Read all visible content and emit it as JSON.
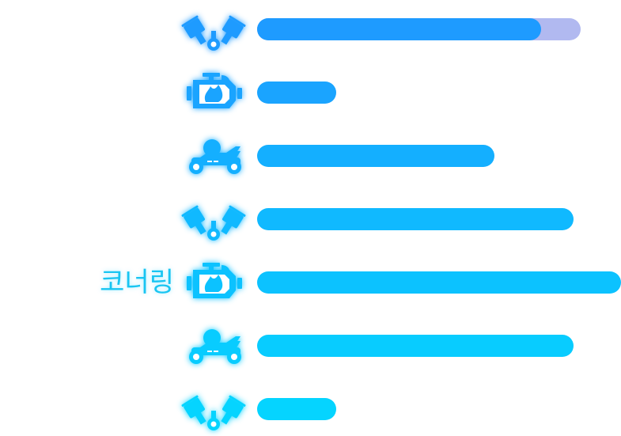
{
  "max_track": 460,
  "colors": {
    "secondary": "#b1b9f0"
  },
  "stats": [
    {
      "label": "",
      "icon": "piston-icon",
      "value": 0.78,
      "secondary": 0.89,
      "color": "#1e9bff"
    },
    {
      "label": "",
      "icon": "engine-icon",
      "value": 0.217,
      "color": "#1aa4ff"
    },
    {
      "label": "",
      "icon": "kart-icon",
      "value": 0.652,
      "color": "#14afff"
    },
    {
      "label": "",
      "icon": "piston-icon",
      "value": 0.87,
      "color": "#10b9ff"
    },
    {
      "label": "코너링",
      "icon": "engine-icon",
      "value": 1.0,
      "color": "#0cc2ff",
      "label_color": "#19c5f2"
    },
    {
      "label": "",
      "icon": "kart-icon",
      "value": 0.87,
      "color": "#08ccff"
    },
    {
      "label": "",
      "icon": "piston-icon",
      "value": 0.217,
      "color": "#05d4ff"
    }
  ]
}
